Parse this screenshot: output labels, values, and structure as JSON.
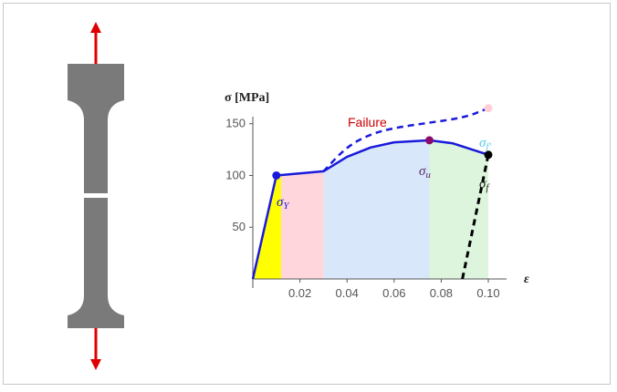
{
  "colors": {
    "curve": "#1a1adb",
    "arrow": "#e00000",
    "specimen": "#7a7a7a",
    "yield_region": "#ffff00",
    "hardening_region": "#ffd6dc",
    "necking_region": "#d8e8fa",
    "fracture_region": "#dcf5dc",
    "failure_text": "#cc0000",
    "yield_point": "#1a1adb",
    "ultimate_point": "#8b0a6a",
    "fracture_point": "#000000",
    "true_fracture_point": "#ffcfd8"
  },
  "labels": {
    "failure": "Failure",
    "y_axis": "σ [MPa]",
    "x_axis": "ε"
  },
  "points": {
    "yield": {
      "symbol": "σ",
      "sub": "Y",
      "color": "#1a1adb"
    },
    "ultimate": {
      "symbol": "σ",
      "sub": "u",
      "color": "#5a2a6a"
    },
    "fracture": {
      "symbol": "σ",
      "sub": "f",
      "color": "#222222"
    },
    "true_fracture": {
      "symbol": "σ",
      "sub": "f'",
      "color": "#55ccee"
    }
  },
  "chart_data": {
    "type": "line",
    "xlabel": "ε",
    "ylabel": "σ [MPa]",
    "xlim": [
      0,
      0.1
    ],
    "ylim": [
      0,
      170
    ],
    "x_ticks": [
      0.02,
      0.04,
      0.06,
      0.08,
      0.1
    ],
    "x_tick_labels": [
      "0.02",
      "0.04",
      "0.06",
      "0.08",
      "0.10"
    ],
    "y_ticks": [
      50,
      100,
      150
    ],
    "y_tick_labels": [
      "50",
      "100",
      "150"
    ],
    "series": [
      {
        "style": "solid",
        "x": [
          0,
          0.01,
          0.03,
          0.04,
          0.05,
          0.06,
          0.075,
          0.085,
          0.1
        ],
        "y": [
          0,
          100,
          104,
          118,
          127,
          132,
          134,
          131,
          120
        ]
      },
      {
        "style": "dashed",
        "x": [
          0.03,
          0.04,
          0.05,
          0.06,
          0.075,
          0.09,
          0.1
        ],
        "y": [
          104,
          128,
          140,
          146,
          151,
          156,
          165
        ]
      },
      {
        "style": "dashed-black",
        "x": [
          0.089,
          0.1
        ],
        "y": [
          0,
          120
        ]
      }
    ],
    "regions": [
      {
        "from": 0.0,
        "to": 0.012,
        "color": "#ffff00"
      },
      {
        "from": 0.012,
        "to": 0.03,
        "color": "#ffd6dc"
      },
      {
        "from": 0.03,
        "to": 0.075,
        "color": "#d8e8fa"
      },
      {
        "from": 0.075,
        "to": 0.1,
        "color": "#dcf5dc"
      }
    ],
    "markers": [
      {
        "name": "yield",
        "x": 0.01,
        "y": 100
      },
      {
        "name": "ultimate",
        "x": 0.075,
        "y": 134
      },
      {
        "name": "fracture",
        "x": 0.1,
        "y": 120
      },
      {
        "name": "true_fracture",
        "x": 0.1,
        "y": 165
      }
    ]
  }
}
